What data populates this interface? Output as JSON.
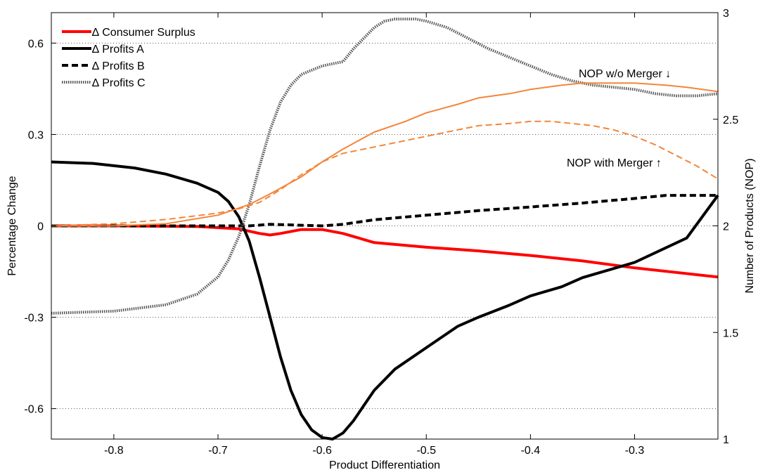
{
  "chart_data": {
    "type": "line",
    "xlabel": "Product Differentiation",
    "ylabel_left": "Percentage Change",
    "ylabel_right": "Number of Products (NOP)",
    "xlim": [
      -0.86,
      -0.22
    ],
    "ylim_left": [
      -0.7,
      0.7
    ],
    "ylim_right": [
      1.0,
      3.0
    ],
    "x_ticks": [
      -0.8,
      -0.7,
      -0.6,
      -0.5,
      -0.4,
      -0.3
    ],
    "x_tick_labels": [
      "-0.8",
      "-0.7",
      "-0.6",
      "-0.5",
      "-0.4",
      "-0.3"
    ],
    "y_ticks_left": [
      0.6,
      0.3,
      0,
      -0.3,
      -0.6
    ],
    "y_tick_labels_left": [
      "0.6",
      "0.3",
      "0",
      "-0.3",
      "-0.6"
    ],
    "y_ticks_right": [
      3,
      2.5,
      2,
      1.5,
      1
    ],
    "y_tick_labels_right": [
      "3",
      "2.5",
      "2",
      "1.5",
      "1"
    ],
    "grid": "horizontal dotted",
    "legend_position": "top-left",
    "series": [
      {
        "name": "Δ Consumer Surplus",
        "axis": "left",
        "color": "#ff0000",
        "style": "solid",
        "x": [
          -0.86,
          -0.8,
          -0.72,
          -0.68,
          -0.66,
          -0.65,
          -0.64,
          -0.62,
          -0.6,
          -0.58,
          -0.55,
          -0.5,
          -0.45,
          -0.4,
          -0.35,
          -0.3,
          -0.22
        ],
        "y": [
          0,
          0,
          -0.002,
          -0.01,
          -0.025,
          -0.03,
          -0.025,
          -0.012,
          -0.012,
          -0.025,
          -0.055,
          -0.07,
          -0.082,
          -0.097,
          -0.115,
          -0.138,
          -0.168
        ]
      },
      {
        "name": "Δ Profits A",
        "axis": "left",
        "color": "#000000",
        "style": "solid",
        "x": [
          -0.86,
          -0.82,
          -0.78,
          -0.75,
          -0.72,
          -0.7,
          -0.69,
          -0.68,
          -0.67,
          -0.66,
          -0.65,
          -0.64,
          -0.63,
          -0.62,
          -0.61,
          -0.6,
          -0.59,
          -0.58,
          -0.57,
          -0.56,
          -0.55,
          -0.53,
          -0.5,
          -0.47,
          -0.45,
          -0.42,
          -0.4,
          -0.37,
          -0.35,
          -0.3,
          -0.25,
          -0.22
        ],
        "y": [
          0.21,
          0.205,
          0.19,
          0.17,
          0.14,
          0.11,
          0.08,
          0.03,
          -0.05,
          -0.17,
          -0.3,
          -0.43,
          -0.54,
          -0.62,
          -0.67,
          -0.695,
          -0.7,
          -0.68,
          -0.64,
          -0.59,
          -0.54,
          -0.47,
          -0.4,
          -0.33,
          -0.3,
          -0.26,
          -0.23,
          -0.2,
          -0.17,
          -0.12,
          -0.04,
          0.1
        ]
      },
      {
        "name": "Δ Profits B",
        "axis": "left",
        "color": "#000000",
        "style": "dashed",
        "x": [
          -0.86,
          -0.8,
          -0.7,
          -0.67,
          -0.65,
          -0.6,
          -0.58,
          -0.55,
          -0.5,
          -0.45,
          -0.4,
          -0.35,
          -0.3,
          -0.27,
          -0.22
        ],
        "y": [
          0,
          0,
          0,
          0,
          0.005,
          0,
          0.005,
          0.02,
          0.035,
          0.05,
          0.062,
          0.075,
          0.09,
          0.1,
          0.1
        ]
      },
      {
        "name": "Δ Profits C",
        "axis": "right",
        "color": "#555555",
        "style": "dotted",
        "x": [
          -0.86,
          -0.8,
          -0.75,
          -0.72,
          -0.7,
          -0.69,
          -0.68,
          -0.67,
          -0.66,
          -0.65,
          -0.64,
          -0.63,
          -0.62,
          -0.61,
          -0.6,
          -0.59,
          -0.58,
          -0.57,
          -0.56,
          -0.55,
          -0.54,
          -0.53,
          -0.52,
          -0.51,
          -0.5,
          -0.48,
          -0.46,
          -0.44,
          -0.42,
          -0.4,
          -0.38,
          -0.36,
          -0.34,
          -0.32,
          -0.3,
          -0.28,
          -0.26,
          -0.24,
          -0.22
        ],
        "y": [
          1.59,
          1.6,
          1.63,
          1.68,
          1.76,
          1.84,
          1.95,
          2.1,
          2.28,
          2.45,
          2.58,
          2.66,
          2.71,
          2.73,
          2.75,
          2.76,
          2.77,
          2.83,
          2.88,
          2.93,
          2.96,
          2.97,
          2.97,
          2.97,
          2.96,
          2.93,
          2.88,
          2.83,
          2.79,
          2.75,
          2.71,
          2.68,
          2.66,
          2.65,
          2.64,
          2.62,
          2.61,
          2.61,
          2.62
        ]
      },
      {
        "name": "NOP w/o Merger",
        "axis": "right",
        "color": "#f4853a",
        "style": "solid",
        "x": [
          -0.86,
          -0.8,
          -0.75,
          -0.7,
          -0.67,
          -0.65,
          -0.62,
          -0.6,
          -0.58,
          -0.55,
          -0.52,
          -0.5,
          -0.47,
          -0.45,
          -0.42,
          -0.4,
          -0.37,
          -0.35,
          -0.32,
          -0.3,
          -0.27,
          -0.25,
          -0.22
        ],
        "y": [
          2.0,
          2.0,
          2.01,
          2.05,
          2.1,
          2.15,
          2.23,
          2.3,
          2.36,
          2.44,
          2.49,
          2.53,
          2.57,
          2.6,
          2.62,
          2.64,
          2.66,
          2.67,
          2.67,
          2.67,
          2.66,
          2.65,
          2.63
        ]
      },
      {
        "name": "NOP with Merger",
        "axis": "right",
        "color": "#f4853a",
        "style": "dashed",
        "x": [
          -0.86,
          -0.8,
          -0.75,
          -0.7,
          -0.68,
          -0.66,
          -0.64,
          -0.62,
          -0.6,
          -0.58,
          -0.55,
          -0.52,
          -0.5,
          -0.47,
          -0.45,
          -0.42,
          -0.4,
          -0.38,
          -0.36,
          -0.34,
          -0.32,
          -0.3,
          -0.28,
          -0.26,
          -0.24,
          -0.22
        ],
        "y": [
          2.0,
          2.01,
          2.03,
          2.06,
          2.08,
          2.11,
          2.17,
          2.24,
          2.3,
          2.34,
          2.37,
          2.4,
          2.42,
          2.45,
          2.47,
          2.48,
          2.49,
          2.49,
          2.48,
          2.47,
          2.45,
          2.42,
          2.38,
          2.33,
          2.28,
          2.22
        ]
      }
    ],
    "legend": [
      {
        "label": "∆ Profits A",
        "color": "#000000",
        "style": "solid"
      },
      {
        "label": "∆ Profits B",
        "color": "#000000",
        "style": "dashed"
      },
      {
        "label": "∆ Profits C",
        "color": "#555555",
        "style": "dotted"
      }
    ],
    "legend_top": {
      "label": "∆ Consumer Surplus",
      "color": "#ff0000",
      "style": "solid"
    },
    "annotations": {
      "nop_without": "NOP w/o Merger ↓",
      "nop_with": "NOP with Merger ↑",
      "color": "#f4853a"
    }
  }
}
